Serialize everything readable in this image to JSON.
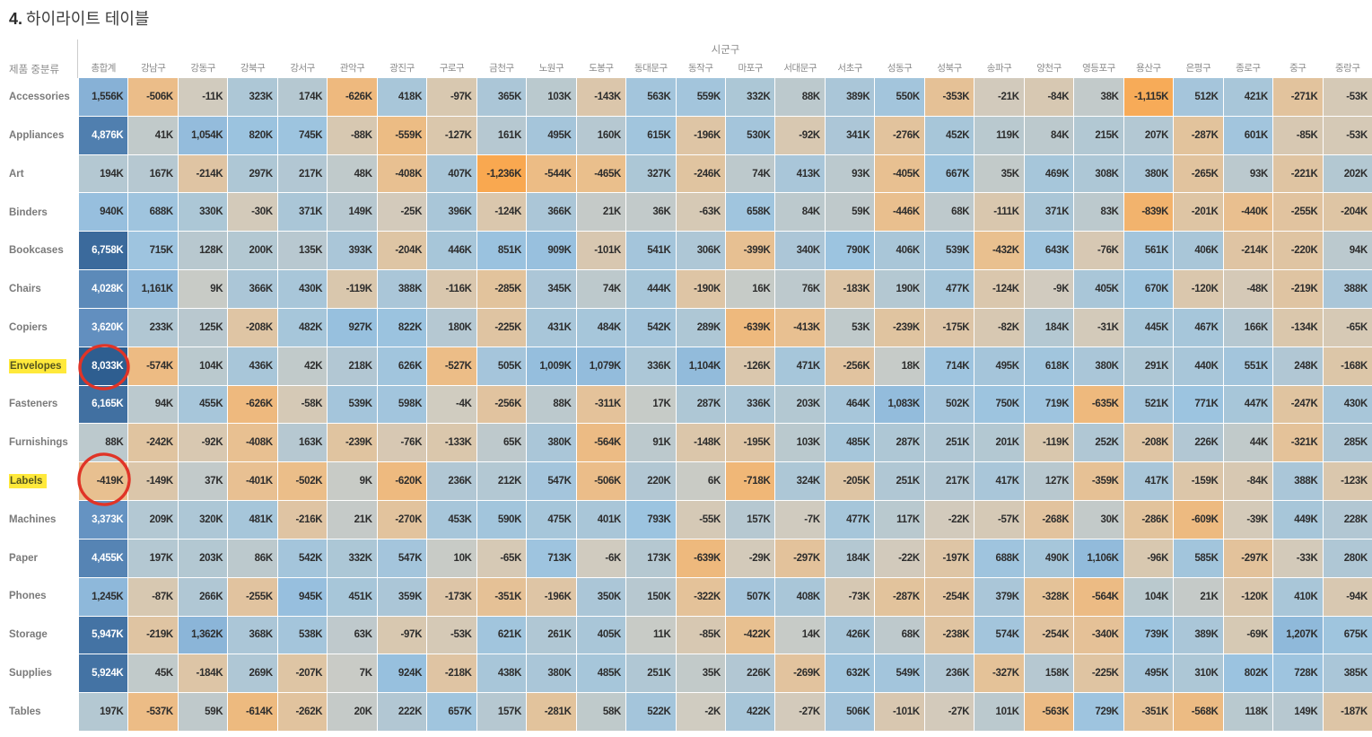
{
  "title": {
    "number": "4.",
    "text": "하이라이트 테이블"
  },
  "colors": {
    "positive_max": "#2e5e90",
    "neutral": "#cfccc2",
    "negative_max": "#f9a850",
    "highlight_yellow": "#ffe93b",
    "annotation_red": "#e03427",
    "header_text": "#8a8a8a",
    "cell_text": "#2d2d2d",
    "cell_text_inverse": "#ffffff"
  },
  "chart_data": {
    "type": "heatmap",
    "title": "4. 하이라이트 테이블",
    "row_header_label": "제품 중분류",
    "column_group_label": "시군구",
    "values_unit": "K",
    "color_scale": {
      "min": -1236,
      "max": 8033,
      "center": 0,
      "white_text_threshold": 3000
    },
    "columns": [
      "총합계",
      "강남구",
      "강동구",
      "강북구",
      "강서구",
      "관악구",
      "광진구",
      "구로구",
      "금천구",
      "노원구",
      "도봉구",
      "동대문구",
      "동작구",
      "마포구",
      "서대문구",
      "서초구",
      "성동구",
      "성북구",
      "송파구",
      "양천구",
      "영등포구",
      "용산구",
      "은평구",
      "종로구",
      "중구",
      "중랑구"
    ],
    "rows": [
      {
        "label": "Accessories",
        "highlighted": false,
        "values": [
          1556,
          -506,
          -11,
          323,
          174,
          -626,
          418,
          -97,
          365,
          103,
          -143,
          563,
          559,
          332,
          88,
          389,
          550,
          -353,
          -21,
          -84,
          38,
          -1115,
          512,
          421,
          -271,
          -53
        ]
      },
      {
        "label": "Appliances",
        "highlighted": false,
        "values": [
          4876,
          41,
          1054,
          820,
          745,
          -88,
          -559,
          -127,
          161,
          495,
          160,
          615,
          -196,
          530,
          -92,
          341,
          -276,
          452,
          119,
          84,
          215,
          207,
          -287,
          601,
          -85,
          -53
        ]
      },
      {
        "label": "Art",
        "highlighted": false,
        "values": [
          194,
          167,
          -214,
          297,
          217,
          48,
          -408,
          407,
          -1236,
          -544,
          -465,
          327,
          -246,
          74,
          413,
          93,
          -405,
          667,
          35,
          469,
          308,
          380,
          -265,
          93,
          -221,
          202
        ]
      },
      {
        "label": "Binders",
        "highlighted": false,
        "values": [
          940,
          688,
          330,
          -30,
          371,
          149,
          -25,
          396,
          -124,
          366,
          21,
          36,
          -63,
          658,
          84,
          59,
          -446,
          68,
          -111,
          371,
          83,
          -839,
          -201,
          -440,
          -255,
          -204
        ]
      },
      {
        "label": "Bookcases",
        "highlighted": false,
        "values": [
          6758,
          715,
          128,
          200,
          135,
          393,
          -204,
          446,
          851,
          909,
          -101,
          541,
          306,
          -399,
          340,
          790,
          406,
          539,
          -432,
          643,
          -76,
          561,
          406,
          -214,
          -220,
          94
        ]
      },
      {
        "label": "Chairs",
        "highlighted": false,
        "values": [
          4028,
          1161,
          9,
          366,
          430,
          -119,
          388,
          -116,
          -285,
          345,
          74,
          444,
          -190,
          16,
          76,
          -183,
          190,
          477,
          -124,
          -9,
          405,
          670,
          -120,
          -48,
          -219,
          388
        ]
      },
      {
        "label": "Copiers",
        "highlighted": false,
        "values": [
          3620,
          233,
          125,
          -208,
          482,
          927,
          822,
          180,
          -225,
          431,
          484,
          542,
          289,
          -639,
          -413,
          53,
          -239,
          -175,
          -82,
          184,
          -31,
          445,
          467,
          166,
          -134,
          -65
        ]
      },
      {
        "label": "Envelopes",
        "highlighted": true,
        "values": [
          8033,
          -574,
          104,
          436,
          42,
          218,
          626,
          -527,
          505,
          1009,
          1079,
          336,
          1104,
          -126,
          471,
          -256,
          18,
          714,
          495,
          618,
          380,
          291,
          440,
          551,
          248,
          -168
        ]
      },
      {
        "label": "Fasteners",
        "highlighted": false,
        "values": [
          6165,
          94,
          455,
          -626,
          -58,
          539,
          598,
          -4,
          -256,
          88,
          -311,
          17,
          287,
          336,
          203,
          464,
          1083,
          502,
          750,
          719,
          -635,
          521,
          771,
          447,
          -247,
          430
        ]
      },
      {
        "label": "Furnishings",
        "highlighted": false,
        "values": [
          88,
          -242,
          -92,
          -408,
          163,
          -239,
          -76,
          -133,
          65,
          380,
          -564,
          91,
          -148,
          -195,
          103,
          485,
          287,
          251,
          201,
          -119,
          252,
          -208,
          226,
          44,
          -321,
          285
        ]
      },
      {
        "label": "Labels",
        "highlighted": true,
        "values": [
          -419,
          -149,
          37,
          -401,
          -502,
          9,
          -620,
          236,
          212,
          547,
          -506,
          220,
          6,
          -718,
          324,
          -205,
          251,
          217,
          417,
          127,
          -359,
          417,
          -159,
          -84,
          388,
          -123
        ]
      },
      {
        "label": "Machines",
        "highlighted": false,
        "values": [
          3373,
          209,
          320,
          481,
          -216,
          21,
          -270,
          453,
          590,
          475,
          401,
          793,
          -55,
          157,
          -7,
          477,
          117,
          -22,
          -57,
          -268,
          30,
          -286,
          -609,
          -39,
          449,
          228
        ]
      },
      {
        "label": "Paper",
        "highlighted": false,
        "values": [
          4455,
          197,
          203,
          86,
          542,
          332,
          547,
          10,
          -65,
          713,
          -6,
          173,
          -639,
          -29,
          -297,
          184,
          -22,
          -197,
          688,
          490,
          1106,
          -96,
          585,
          -297,
          -33,
          280
        ]
      },
      {
        "label": "Phones",
        "highlighted": false,
        "values": [
          1245,
          -87,
          266,
          -255,
          945,
          451,
          359,
          -173,
          -351,
          -196,
          350,
          150,
          -322,
          507,
          408,
          -73,
          -287,
          -254,
          379,
          -328,
          -564,
          104,
          21,
          -120,
          410,
          -94
        ]
      },
      {
        "label": "Storage",
        "highlighted": false,
        "values": [
          5947,
          -219,
          1362,
          368,
          538,
          63,
          -97,
          -53,
          621,
          261,
          405,
          11,
          -85,
          -422,
          14,
          426,
          68,
          -238,
          574,
          -254,
          -340,
          739,
          389,
          -69,
          1207,
          675
        ]
      },
      {
        "label": "Supplies",
        "highlighted": false,
        "values": [
          5924,
          45,
          -184,
          269,
          -207,
          7,
          924,
          -218,
          438,
          380,
          485,
          251,
          35,
          226,
          -269,
          632,
          549,
          236,
          -327,
          158,
          -225,
          495,
          310,
          802,
          728,
          385
        ]
      },
      {
        "label": "Tables",
        "highlighted": false,
        "values": [
          197,
          -537,
          59,
          -614,
          -262,
          20,
          222,
          657,
          157,
          -281,
          58,
          522,
          -2,
          422,
          -27,
          506,
          -101,
          -27,
          101,
          -563,
          729,
          -351,
          -568,
          118,
          149,
          -187
        ]
      }
    ],
    "annotations": {
      "circled_cells": [
        {
          "row": "Envelopes",
          "column": "총합계",
          "value_label": "8,033K"
        },
        {
          "row": "Labels",
          "column": "총합계",
          "value_label": "-419K"
        }
      ],
      "highlighted_row_labels": [
        "Envelopes",
        "Labels"
      ]
    }
  }
}
